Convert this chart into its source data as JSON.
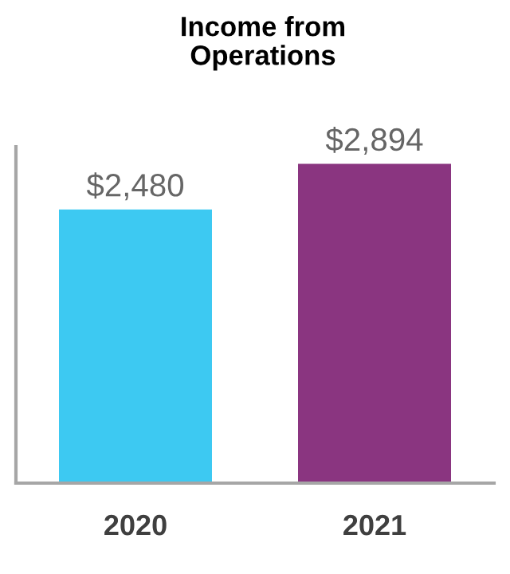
{
  "chart_data": {
    "type": "bar",
    "title": "Income from\nOperations",
    "categories": [
      "2020",
      "2021"
    ],
    "values": [
      2480,
      2894
    ],
    "colors": [
      "#3dc9f2",
      "#8a3580"
    ],
    "value_labels": [
      "$2,480",
      "$2,894"
    ],
    "ylim": [
      0,
      3050
    ],
    "grid": false,
    "legend": false
  }
}
